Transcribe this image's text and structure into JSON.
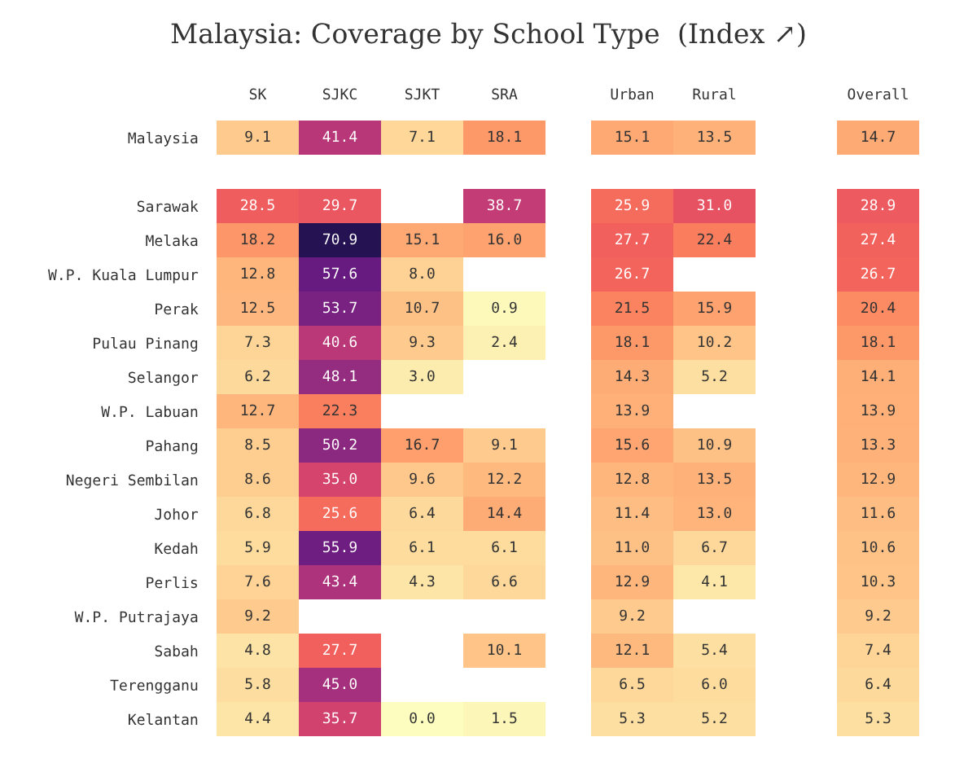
{
  "chart_data": [
    {
      "type": "heatmap",
      "title": "Malaysia: Coverage by School Type  (Index ↗)",
      "categories": [
        "SK",
        "SJKC",
        "SJKT",
        "SRA"
      ],
      "y_categories": [
        "Malaysia"
      ],
      "cells": [
        [
          9.1,
          41.4,
          7.1,
          18.1
        ]
      ],
      "cell_labels": [
        [
          "9.1",
          "41.4",
          "7.1",
          "18.1"
        ]
      ]
    },
    {
      "type": "heatmap",
      "categories": [
        "Urban",
        "Rural"
      ],
      "y_categories": [
        null
      ],
      "cells": [
        [
          15.1,
          13.5
        ]
      ],
      "cell_labels": [
        [
          "15.1",
          "13.5"
        ]
      ]
    },
    {
      "type": "heatmap",
      "categories": [
        "Overall"
      ],
      "y_categories": [
        null
      ],
      "cells": [
        [
          14.7
        ]
      ],
      "cell_labels": [
        [
          "14.7"
        ]
      ]
    },
    {
      "type": "heatmap",
      "categories": [
        null,
        null,
        null,
        null
      ],
      "y_categories": [
        "Sarawak",
        "Melaka",
        "W.P. Kuala Lumpur",
        "Perak",
        "Pulau Pinang",
        "Selangor",
        "W.P. Labuan",
        "Pahang",
        "Negeri Sembilan",
        "Johor",
        "Kedah",
        "Perlis",
        "W.P. Putrajaya",
        "Sabah",
        "Terengganu",
        "Kelantan"
      ],
      "cells": [
        [
          28.5,
          29.7,
          null,
          38.7
        ],
        [
          18.2,
          70.9,
          15.1,
          16.0
        ],
        [
          12.8,
          57.6,
          8.0,
          null
        ],
        [
          12.5,
          53.7,
          10.7,
          0.9
        ],
        [
          7.3,
          40.6,
          9.3,
          2.4
        ],
        [
          6.2,
          48.1,
          3.0,
          null
        ],
        [
          12.7,
          22.3,
          null,
          null
        ],
        [
          8.5,
          50.2,
          16.7,
          9.1
        ],
        [
          8.6,
          35.0,
          9.6,
          12.2
        ],
        [
          6.8,
          25.6,
          6.4,
          14.4
        ],
        [
          5.9,
          55.9,
          6.1,
          6.1
        ],
        [
          7.6,
          43.4,
          4.3,
          6.6
        ],
        [
          9.2,
          null,
          null,
          null
        ],
        [
          4.8,
          27.7,
          null,
          10.1
        ],
        [
          5.8,
          45.0,
          null,
          null
        ],
        [
          4.4,
          35.7,
          0.0,
          1.5
        ]
      ],
      "cell_labels": [
        [
          "28.5",
          "29.7",
          null,
          "38.7"
        ],
        [
          "18.2",
          "70.9",
          "15.1",
          "16.0"
        ],
        [
          "12.8",
          "57.6",
          "8.0",
          null
        ],
        [
          "12.5",
          "53.7",
          "10.7",
          "0.9"
        ],
        [
          "7.3",
          "40.6",
          "9.3",
          "2.4"
        ],
        [
          "6.2",
          "48.1",
          "3.0",
          null
        ],
        [
          "12.7",
          "22.3",
          null,
          null
        ],
        [
          "8.5",
          "50.2",
          "16.7",
          "9.1"
        ],
        [
          "8.6",
          "35.0",
          "9.6",
          "12.2"
        ],
        [
          "6.8",
          "25.6",
          "6.4",
          "14.4"
        ],
        [
          "5.9",
          "55.9",
          "6.1",
          "6.1"
        ],
        [
          "7.6",
          "43.4",
          "4.3",
          "6.6"
        ],
        [
          "9.2",
          null,
          null,
          null
        ],
        [
          "4.8",
          "27.7",
          null,
          "10.1"
        ],
        [
          "5.8",
          "45.0",
          null,
          null
        ],
        [
          "4.4",
          "35.7",
          "0.0",
          "1.5"
        ]
      ]
    },
    {
      "type": "heatmap",
      "categories": [
        null,
        null
      ],
      "y_categories": [
        null,
        null,
        null,
        null,
        null,
        null,
        null,
        null,
        null,
        null,
        null,
        null,
        null,
        null,
        null,
        null
      ],
      "cells": [
        [
          25.9,
          31.0
        ],
        [
          27.7,
          22.4
        ],
        [
          26.7,
          null
        ],
        [
          21.5,
          15.9
        ],
        [
          18.1,
          10.2
        ],
        [
          14.3,
          5.2
        ],
        [
          13.9,
          null
        ],
        [
          15.6,
          10.9
        ],
        [
          12.8,
          13.5
        ],
        [
          11.4,
          13.0
        ],
        [
          11.0,
          6.7
        ],
        [
          12.9,
          4.1
        ],
        [
          9.2,
          null
        ],
        [
          12.1,
          5.4
        ],
        [
          6.5,
          6.0
        ],
        [
          5.3,
          5.2
        ]
      ],
      "cell_labels": [
        [
          "25.9",
          "31.0"
        ],
        [
          "27.7",
          "22.4"
        ],
        [
          "26.7",
          null
        ],
        [
          "21.5",
          "15.9"
        ],
        [
          "18.1",
          "10.2"
        ],
        [
          "14.3",
          "5.2"
        ],
        [
          "13.9",
          null
        ],
        [
          "15.6",
          "10.9"
        ],
        [
          "12.8",
          "13.5"
        ],
        [
          "11.4",
          "13.0"
        ],
        [
          "11.0",
          "6.7"
        ],
        [
          "12.9",
          "4.1"
        ],
        [
          "9.2",
          null
        ],
        [
          "12.1",
          "5.4"
        ],
        [
          "6.5",
          "6.0"
        ],
        [
          "5.3",
          "5.2"
        ]
      ]
    },
    {
      "type": "heatmap",
      "categories": [
        null
      ],
      "y_categories": [
        null,
        null,
        null,
        null,
        null,
        null,
        null,
        null,
        null,
        null,
        null,
        null,
        null,
        null,
        null,
        null
      ],
      "cells": [
        [
          28.9
        ],
        [
          27.4
        ],
        [
          26.7
        ],
        [
          20.4
        ],
        [
          18.1
        ],
        [
          14.1
        ],
        [
          13.9
        ],
        [
          13.3
        ],
        [
          12.9
        ],
        [
          11.6
        ],
        [
          10.6
        ],
        [
          10.3
        ],
        [
          9.2
        ],
        [
          7.4
        ],
        [
          6.4
        ],
        [
          5.3
        ]
      ],
      "cell_labels": [
        [
          "28.9"
        ],
        [
          "27.4"
        ],
        [
          "26.7"
        ],
        [
          "20.4"
        ],
        [
          "18.1"
        ],
        [
          "14.1"
        ],
        [
          "13.9"
        ],
        [
          "13.3"
        ],
        [
          "12.9"
        ],
        [
          "11.6"
        ],
        [
          "10.6"
        ],
        [
          "10.3"
        ],
        [
          "9.2"
        ],
        [
          "7.4"
        ],
        [
          "6.4"
        ],
        [
          "5.3"
        ]
      ]
    }
  ]
}
